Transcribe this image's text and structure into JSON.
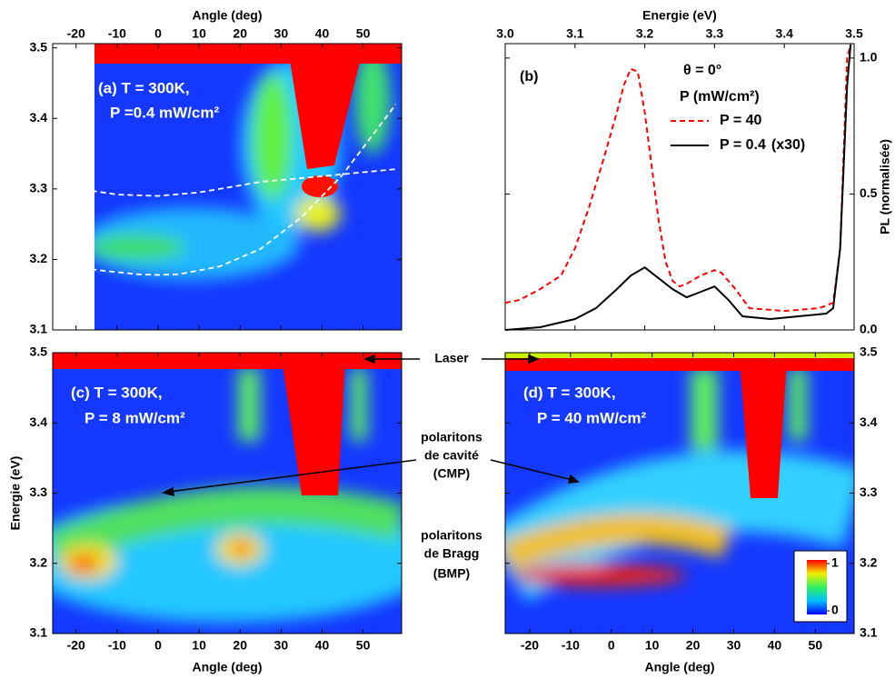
{
  "chart_data": [
    {
      "type": "heatmap",
      "xlabel": "Angle (deg)",
      "x_axis_position": "top",
      "y_axis_position": "left",
      "xlim": [
        -25.7,
        59.4
      ],
      "xticks": [
        -20,
        -10,
        0,
        10,
        20,
        30,
        40,
        50
      ],
      "ylim": [
        3.1,
        3.506
      ],
      "yticks": [
        3.1,
        3.2,
        3.3,
        3.4,
        3.5
      ],
      "annotations": [
        "(a) T = 300K,",
        "P =0.4 mW/cm²"
      ],
      "series": [
        {
          "name": null,
          "color": "#ffffff",
          "dash": true,
          "x": [
            -25,
            -15,
            -5,
            0,
            5,
            15,
            25,
            35,
            45,
            58
          ],
          "values": [
            3.197,
            3.185,
            3.179,
            3.178,
            3.179,
            3.19,
            3.215,
            3.26,
            3.32,
            3.42
          ]
        },
        {
          "name": null,
          "color": "#ffffff",
          "dash": true,
          "x": [
            -25,
            -10,
            0,
            10,
            25,
            40,
            58
          ],
          "values": [
            3.305,
            3.292,
            3.29,
            3.295,
            3.31,
            3.318,
            3.328
          ]
        }
      ]
    },
    {
      "type": "line",
      "xlabel": "Energie (eV)",
      "ylabel": "PL (normalisée)",
      "x_axis_position": "top",
      "y_axis_position": "right",
      "xlim": [
        3.0,
        3.5
      ],
      "xticks": [
        {
          "value": 3.0,
          "label": "3.0"
        },
        3.1,
        3.2,
        3.3,
        3.4,
        3.5
      ],
      "ylim": [
        0,
        1.053
      ],
      "yticks": [
        {
          "value": 0,
          "label": "0.0"
        },
        0.5,
        {
          "value": 1,
          "label": "1.0"
        }
      ],
      "annotations": [
        "(b)"
      ],
      "legend_title": [
        "θ = 0°",
        "P (mW/cm²)"
      ],
      "series": [
        {
          "name": "P = 40",
          "color": "#ff0000",
          "dash": true,
          "note": null,
          "x": [
            3.0,
            3.02,
            3.05,
            3.08,
            3.1,
            3.12,
            3.14,
            3.16,
            3.17,
            3.18,
            3.19,
            3.2,
            3.21,
            3.22,
            3.23,
            3.24,
            3.25,
            3.26,
            3.28,
            3.3,
            3.31,
            3.33,
            3.35,
            3.4,
            3.45,
            3.47,
            3.48,
            3.49,
            3.495
          ],
          "values": [
            0.1,
            0.11,
            0.15,
            0.2,
            0.3,
            0.45,
            0.62,
            0.8,
            0.9,
            0.96,
            0.95,
            0.8,
            0.6,
            0.4,
            0.25,
            0.18,
            0.16,
            0.17,
            0.2,
            0.22,
            0.21,
            0.15,
            0.08,
            0.07,
            0.08,
            0.1,
            0.3,
            1.0,
            1.05
          ]
        },
        {
          "name": "P = 0.4",
          "color": "#000000",
          "dash": false,
          "note": "(x30)",
          "x": [
            3.0,
            3.05,
            3.1,
            3.13,
            3.16,
            3.18,
            3.2,
            3.22,
            3.24,
            3.26,
            3.28,
            3.3,
            3.32,
            3.34,
            3.38,
            3.42,
            3.46,
            3.47,
            3.48,
            3.49,
            3.495
          ],
          "values": [
            0.0,
            0.01,
            0.04,
            0.08,
            0.15,
            0.2,
            0.23,
            0.19,
            0.15,
            0.12,
            0.14,
            0.16,
            0.11,
            0.05,
            0.04,
            0.05,
            0.06,
            0.08,
            0.3,
            0.9,
            1.05
          ]
        }
      ]
    },
    {
      "type": "heatmap",
      "xlabel": "Angle (deg)",
      "ylabel": "Energie (eV)",
      "x_axis_position": "bottom",
      "y_axis_position": "left",
      "xlim": [
        -25.7,
        59.4
      ],
      "xticks": [
        -20,
        -10,
        0,
        10,
        20,
        30,
        40,
        50
      ],
      "ylim": [
        3.1,
        3.5
      ],
      "yticks": [
        3.1,
        3.2,
        3.3,
        3.4,
        3.5
      ],
      "annotations": [
        "(c) T = 300K,",
        "P = 8 mW/cm²"
      ],
      "series": []
    },
    {
      "type": "heatmap",
      "xlabel": "Angle (deg)",
      "x_axis_position": "bottom",
      "y_axis_position": "right",
      "xlim": [
        -26,
        59.5
      ],
      "xticks": [
        -20,
        -10,
        0,
        10,
        20,
        30,
        40,
        50
      ],
      "ylim": [
        3.1,
        3.5
      ],
      "yticks": [
        3.1,
        3.2,
        3.3,
        3.4,
        3.5
      ],
      "annotations": [
        "(d) T = 300K,",
        "P = 40 mW/cm²"
      ],
      "series": [],
      "colorbar": {
        "ticks": [
          0,
          1
        ]
      }
    }
  ],
  "figure_annotations": [
    "Laser",
    "polaritons",
    "de cavité",
    "(CMP)",
    "polaritons",
    "de Bragg",
    "(BMP)"
  ]
}
